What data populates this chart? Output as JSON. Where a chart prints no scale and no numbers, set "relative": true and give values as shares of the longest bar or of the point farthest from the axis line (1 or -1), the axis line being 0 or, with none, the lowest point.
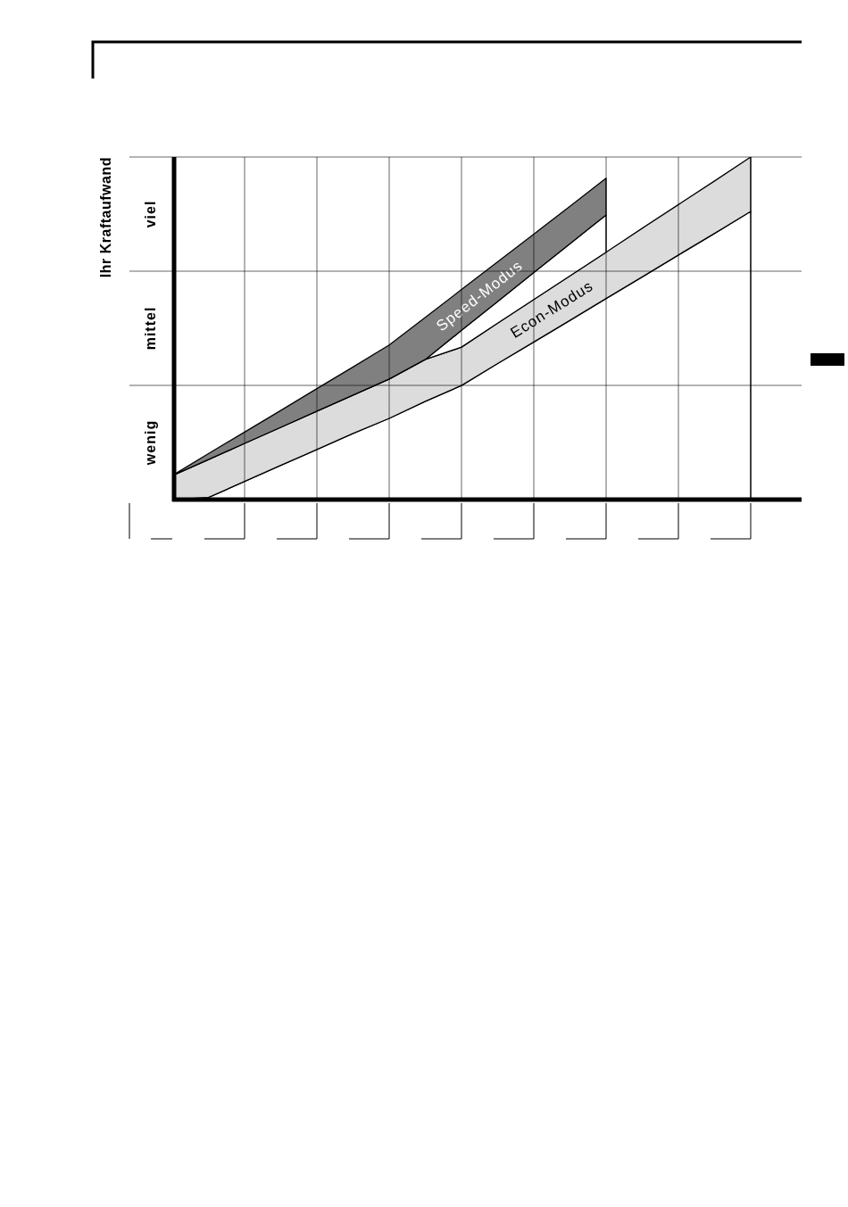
{
  "chart_data": {
    "type": "area",
    "stacked": true,
    "relative": true,
    "ylabel": "Ihr Kraftaufwand",
    "annotations": [
      "wenig",
      "mittel",
      "viel"
    ],
    "grid": true,
    "legend": false,
    "categories": [
      null,
      null,
      null,
      null,
      null,
      null,
      null,
      null,
      null,
      null,
      null,
      null,
      null,
      null,
      null,
      null,
      null,
      null
    ],
    "series": [
      {
        "color": "#ffffff",
        "values": [
          0,
          0.006,
          0.053,
          0.1,
          0.146,
          0.193,
          0.237,
          0.287,
          0.333,
          0.397,
          0.46,
          0.523,
          0.587,
          0.65,
          0.714,
          0.777,
          0.841,
          null
        ]
      },
      {
        "name": "Econ-Modus",
        "color": "#dcdcdc",
        "values": [
          0.07,
          0.111,
          0.111,
          0.111,
          0.112,
          0.112,
          0.115,
          0.122,
          0.112,
          0.118,
          0.124,
          0.13,
          0.135,
          0.142,
          0.147,
          0.153,
          0.159,
          null
        ]
      },
      {
        "color": "#ffffff",
        "values": [
          0,
          0,
          0,
          0,
          0,
          0,
          0,
          0,
          0.049,
          0.063,
          0.079,
          0.094,
          0.109,
          null,
          null,
          null,
          null,
          null
        ]
      },
      {
        "name": "Speed-Modus",
        "color": "#808080",
        "values": [
          0,
          0.017,
          0.033,
          0.049,
          0.066,
          0.082,
          0.099,
          0.123,
          0.119,
          0.116,
          0.112,
          0.109,
          0.107,
          null,
          null,
          null,
          null,
          null
        ]
      }
    ]
  }
}
